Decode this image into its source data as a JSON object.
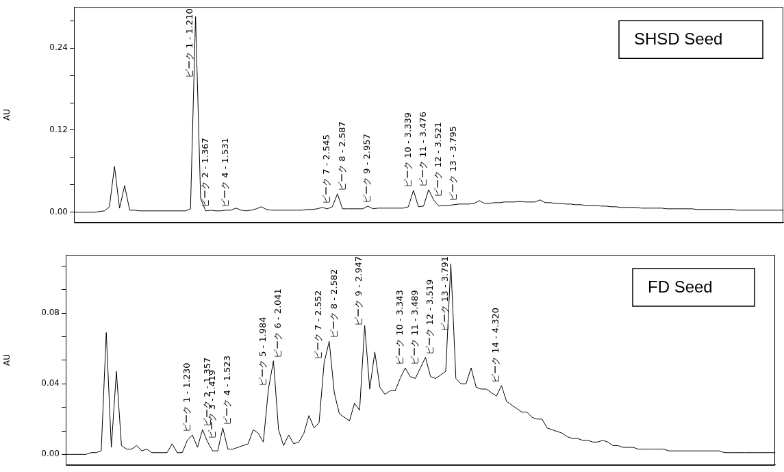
{
  "chart_data": [
    {
      "type": "line",
      "title": "SHSD Seed",
      "ylabel": "AU",
      "categories": [
        null,
        null,
        null,
        null,
        null,
        null,
        null,
        null,
        null,
        null,
        null,
        null,
        null,
        null,
        null,
        null,
        null,
        null,
        null,
        null,
        null,
        null,
        null,
        null,
        null,
        null,
        null,
        null,
        null,
        null,
        null,
        null,
        null,
        null,
        null,
        null,
        null,
        null,
        null,
        null,
        null,
        null,
        null,
        null,
        null,
        null,
        null,
        null,
        null,
        null,
        null,
        null,
        null,
        null,
        null,
        null,
        null,
        null,
        null,
        null,
        null,
        null,
        null,
        null,
        null,
        null,
        null,
        null,
        null,
        null,
        null,
        null,
        null,
        null,
        null,
        null,
        null,
        null,
        null,
        null,
        null,
        null,
        null,
        null,
        null,
        null,
        null,
        null,
        null,
        null,
        null,
        null,
        null,
        null,
        null,
        null,
        null,
        null,
        null,
        null,
        null,
        null,
        null,
        null,
        null,
        null,
        null,
        null,
        null,
        null,
        null,
        null,
        null,
        null,
        null,
        null,
        null,
        null,
        null,
        null,
        null,
        null,
        null,
        null,
        null,
        null,
        null,
        null,
        null,
        null,
        null,
        null,
        null,
        null,
        null,
        null,
        null,
        null,
        null,
        null,
        null
      ],
      "ylim": [
        -0.015,
        0.3
      ],
      "yticks": [
        {
          "value": 0,
          "label": "0.00"
        },
        {
          "value": 0.04,
          "label": null
        },
        {
          "value": 0.08,
          "label": null
        },
        0.12,
        {
          "value": 0.16,
          "label": null
        },
        {
          "value": 0.2,
          "label": null
        },
        0.24,
        {
          "value": 0.28,
          "label": null
        }
      ],
      "tick_labels": "y",
      "grid": false,
      "legend": false,
      "marker": "none",
      "line_style": "solid",
      "series": [
        {
          "color": "#000000",
          "values": [
            0,
            0,
            0,
            0,
            0,
            0.001,
            0.002,
            0.008,
            0.067,
            0.006,
            0.039,
            0.003,
            0.003,
            0.002,
            0.002,
            0.002,
            0.002,
            0.002,
            0.002,
            0.002,
            0.002,
            0.002,
            0.002,
            0.005,
            0.286,
            0.02,
            0.002,
            0.003,
            0.002,
            0.002,
            0.003,
            0.003,
            0.006,
            0.003,
            0.002,
            0.003,
            0.005,
            0.008,
            0.004,
            0.003,
            0.003,
            0.003,
            0.003,
            0.003,
            0.003,
            0.003,
            0.004,
            0.004,
            0.005,
            0.007,
            0.005,
            0.008,
            0.027,
            0.005,
            0.005,
            0.005,
            0.005,
            0.005,
            0.009,
            0.005,
            0.006,
            0.006,
            0.006,
            0.006,
            0.006,
            0.006,
            0.008,
            0.032,
            0.008,
            0.009,
            0.033,
            0.018,
            0.009,
            0.01,
            0.01,
            0.011,
            0.012,
            0.012,
            0.012,
            0.013,
            0.017,
            0.013,
            0.013,
            0.014,
            0.014,
            0.015,
            0.015,
            0.015,
            0.016,
            0.015,
            0.015,
            0.015,
            0.018,
            0.014,
            0.014,
            0.013,
            0.013,
            0.012,
            0.012,
            0.011,
            0.011,
            0.01,
            0.01,
            0.01,
            0.009,
            0.009,
            0.008,
            0.008,
            0.007,
            0.007,
            0.007,
            0.007,
            0.006,
            0.006,
            0.006,
            0.006,
            0.006,
            0.005,
            0.005,
            0.005,
            0.005,
            0.005,
            0.005,
            0.004,
            0.004,
            0.004,
            0.004,
            0.004,
            0.004,
            0.004,
            0.004,
            0.003,
            0.003,
            0.003,
            0.003,
            0.003,
            0.003,
            0.003,
            0.003,
            0.003,
            0.003
          ],
          "value_labels": [
            null,
            null,
            null,
            null,
            null,
            null,
            null,
            null,
            null,
            null,
            null,
            null,
            null,
            null,
            null,
            null,
            null,
            null,
            null,
            null,
            null,
            null,
            null,
            null,
            "ピーク 1 - 1.210",
            null,
            null,
            "ピーク 2 - 1.367",
            null,
            null,
            null,
            "ピーク 4 - 1.531",
            null,
            null,
            null,
            null,
            null,
            null,
            null,
            null,
            null,
            null,
            null,
            null,
            null,
            null,
            null,
            null,
            null,
            null,
            null,
            "ピーク 7 - 2.545",
            "ピーク 8 - 2.587",
            null,
            null,
            null,
            null,
            null,
            null,
            "ピーク 9 - 2.957",
            null,
            null,
            null,
            null,
            null,
            null,
            null,
            "ピーク 10 - 3.339",
            null,
            null,
            "ピーク 11 - 3.476",
            "ピーク 12 - 3.521",
            null,
            null,
            null,
            null,
            "ピーク 13 - 3.795",
            null,
            null,
            null,
            null,
            null,
            null,
            null,
            null,
            null,
            null,
            null,
            null,
            null,
            null,
            null,
            null,
            null,
            null,
            null,
            null,
            null,
            null,
            null,
            null,
            null,
            null,
            null,
            null,
            null,
            null,
            null,
            null,
            null,
            null,
            null,
            null,
            null,
            null,
            null,
            null,
            null,
            null,
            null,
            null,
            null,
            null,
            null,
            null,
            null,
            null,
            null,
            null,
            null,
            null,
            null,
            null,
            null,
            null,
            null,
            null,
            null,
            null,
            null,
            null
          ]
        }
      ]
    },
    {
      "type": "line",
      "title": "FD Seed",
      "ylabel": "AU",
      "categories": [
        null,
        null,
        null,
        null,
        null,
        null,
        null,
        null,
        null,
        null,
        null,
        null,
        null,
        null,
        null,
        null,
        null,
        null,
        null,
        null,
        null,
        null,
        null,
        null,
        null,
        null,
        null,
        null,
        null,
        null,
        null,
        null,
        null,
        null,
        null,
        null,
        null,
        null,
        null,
        null,
        null,
        null,
        null,
        null,
        null,
        null,
        null,
        null,
        null,
        null,
        null,
        null,
        null,
        null,
        null,
        null,
        null,
        null,
        null,
        null,
        null,
        null,
        null,
        null,
        null,
        null,
        null,
        null,
        null,
        null,
        null,
        null,
        null,
        null,
        null,
        null,
        null,
        null,
        null,
        null,
        null,
        null,
        null,
        null,
        null,
        null,
        null,
        null,
        null,
        null,
        null,
        null,
        null,
        null,
        null,
        null,
        null,
        null,
        null,
        null,
        null,
        null,
        null,
        null,
        null,
        null,
        null,
        null,
        null,
        null,
        null,
        null,
        null,
        null,
        null,
        null,
        null,
        null,
        null,
        null,
        null,
        null,
        null,
        null,
        null,
        null,
        null,
        null,
        null,
        null,
        null,
        null,
        null,
        null,
        null,
        null,
        null,
        null,
        null,
        null,
        null
      ],
      "ylim": [
        -0.006,
        0.113
      ],
      "yticks": [
        {
          "value": 0,
          "label": "0.00"
        },
        {
          "value": 0.0133,
          "label": null
        },
        {
          "value": 0.0267,
          "label": null
        },
        0.04,
        {
          "value": 0.0533,
          "label": null
        },
        {
          "value": 0.0667,
          "label": null
        },
        0.08,
        {
          "value": 0.0933,
          "label": null
        },
        {
          "value": 0.1067,
          "label": null
        }
      ],
      "tick_labels": "y",
      "grid": false,
      "legend": false,
      "marker": "none",
      "line_style": "solid",
      "series": [
        {
          "color": "#000000",
          "values": [
            0,
            0,
            0,
            0,
            0,
            0.001,
            0.001,
            0.002,
            0.069,
            0.004,
            0.047,
            0.005,
            0.003,
            0.003,
            0.005,
            0.002,
            0.003,
            0.001,
            0.001,
            0.001,
            0.001,
            0.006,
            0.001,
            0.001,
            0.008,
            0.011,
            0.004,
            0.014,
            0.007,
            0.002,
            0.002,
            0.015,
            0.003,
            0.003,
            0.004,
            0.005,
            0.006,
            0.014,
            0.012,
            0.007,
            0.037,
            0.053,
            0.014,
            0.005,
            0.011,
            0.006,
            0.007,
            0.012,
            0.022,
            0.015,
            0.018,
            0.052,
            0.064,
            0.035,
            0.023,
            0.021,
            0.019,
            0.029,
            0.025,
            0.073,
            0.037,
            0.058,
            0.038,
            0.034,
            0.036,
            0.036,
            0.043,
            0.049,
            0.044,
            0.043,
            0.049,
            0.055,
            0.044,
            0.043,
            0.045,
            0.047,
            0.108,
            0.043,
            0.04,
            0.04,
            0.049,
            0.038,
            0.037,
            0.037,
            0.035,
            0.033,
            0.039,
            0.03,
            0.028,
            0.026,
            0.024,
            0.024,
            0.021,
            0.02,
            0.02,
            0.015,
            0.014,
            0.013,
            0.012,
            0.01,
            0.009,
            0.009,
            0.008,
            0.008,
            0.007,
            0.007,
            0.008,
            0.007,
            0.005,
            0.005,
            0.004,
            0.004,
            0.004,
            0.003,
            0.003,
            0.003,
            0.003,
            0.003,
            0.003,
            0.002,
            0.002,
            0.002,
            0.002,
            0.002,
            0.002,
            0.002,
            0.002,
            0.002,
            0.002,
            0.002,
            0.001,
            0.001,
            0.001,
            0.001,
            0.001,
            0.001,
            0.001,
            0.001,
            0.001,
            0.001,
            0.001
          ],
          "value_labels": [
            null,
            null,
            null,
            null,
            null,
            null,
            null,
            null,
            null,
            null,
            null,
            null,
            null,
            null,
            null,
            null,
            null,
            null,
            null,
            null,
            null,
            null,
            null,
            null,
            null,
            "ピーク 1 - 1.230",
            null,
            "ピーク 2 - 1.357",
            "ピーク 3 - 1.419",
            null,
            null,
            "ピーク 4 - 1.523",
            null,
            null,
            null,
            null,
            null,
            null,
            null,
            null,
            "ピーク 5 - 1.984",
            "ピーク 6 - 2.041",
            null,
            null,
            null,
            null,
            null,
            null,
            null,
            null,
            null,
            "ピーク 7 - 2.552",
            "ピーク 8 - 2.582",
            null,
            null,
            null,
            null,
            null,
            null,
            "ピーク 9 - 2.947",
            null,
            null,
            null,
            null,
            null,
            null,
            null,
            "ピーク 10 - 3.343",
            null,
            null,
            "ピーク 11 - 3.489",
            "ピーク 12 - 3.519",
            null,
            null,
            null,
            null,
            "ピーク 13 - 3.791",
            null,
            null,
            null,
            null,
            null,
            null,
            null,
            null,
            null,
            "ピーク 14 - 4.320",
            null,
            null,
            null,
            null,
            null,
            null,
            null,
            null,
            null,
            null,
            null,
            null,
            null,
            null,
            null,
            null,
            null,
            null,
            null,
            null,
            null,
            null,
            null,
            null,
            null,
            null,
            null,
            null,
            null,
            null,
            null,
            null,
            null,
            null,
            null,
            null,
            null,
            null,
            null,
            null,
            null,
            null,
            null,
            null,
            null,
            null,
            null,
            null,
            null,
            null,
            null,
            null,
            null,
            null
          ]
        }
      ]
    }
  ]
}
